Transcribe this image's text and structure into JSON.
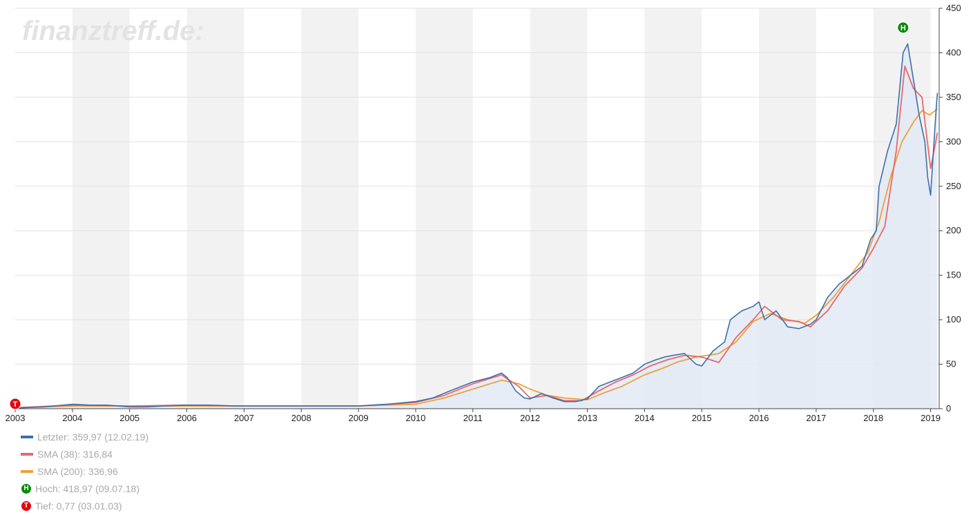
{
  "chart_data": {
    "type": "line",
    "watermark": "finanztreff.de:",
    "xlim": [
      2003.0,
      2019.15
    ],
    "ylim": [
      0,
      450
    ],
    "x_ticks": [
      "2003",
      "2004",
      "2005",
      "2006",
      "2007",
      "2008",
      "2009",
      "2010",
      "2011",
      "2012",
      "2013",
      "2014",
      "2015",
      "2016",
      "2017",
      "2018",
      "2019"
    ],
    "y_ticks": [
      "0",
      "50",
      "100",
      "150",
      "200",
      "250",
      "300",
      "350",
      "400",
      "450"
    ],
    "grid": "horizontal, alternating yearly column shading",
    "legend_position": "bottom-left",
    "colors": {
      "price": "#3d6eab",
      "sma38": "#e8676a",
      "sma200": "#f0a035",
      "area": "#e2eaf4",
      "high_marker": "#0a8a0a",
      "low_marker": "#e8000c"
    },
    "series": [
      {
        "name": "Letzter",
        "x": [
          2003.0,
          2003.5,
          2004.0,
          2004.3,
          2004.6,
          2005.0,
          2005.3,
          2005.6,
          2006.0,
          2006.4,
          2006.8,
          2007.2,
          2007.6,
          2008.0,
          2008.5,
          2009.0,
          2009.5,
          2010.0,
          2010.3,
          2010.6,
          2011.0,
          2011.3,
          2011.5,
          2011.6,
          2011.75,
          2011.9,
          2012.0,
          2012.2,
          2012.4,
          2012.6,
          2012.8,
          2013.0,
          2013.2,
          2013.4,
          2013.6,
          2013.8,
          2014.0,
          2014.2,
          2014.35,
          2014.5,
          2014.7,
          2014.9,
          2015.0,
          2015.2,
          2015.4,
          2015.5,
          2015.7,
          2015.9,
          2016.0,
          2016.1,
          2016.3,
          2016.5,
          2016.7,
          2016.9,
          2017.0,
          2017.2,
          2017.4,
          2017.6,
          2017.8,
          2017.95,
          2018.05,
          2018.1,
          2018.25,
          2018.4,
          2018.52,
          2018.6,
          2018.7,
          2018.8,
          2018.9,
          2018.95,
          2019.0,
          2019.05,
          2019.1,
          2019.12
        ],
        "values": [
          0.77,
          2,
          5,
          4,
          4,
          2,
          2,
          3,
          4,
          4,
          3,
          3,
          3,
          3,
          3,
          3,
          5,
          8,
          12,
          20,
          30,
          35,
          40,
          35,
          20,
          12,
          11,
          17,
          12,
          8,
          8,
          11,
          25,
          30,
          35,
          40,
          50,
          55,
          58,
          60,
          62,
          50,
          48,
          65,
          75,
          100,
          110,
          115,
          120,
          100,
          110,
          92,
          90,
          95,
          100,
          125,
          140,
          150,
          160,
          190,
          200,
          250,
          290,
          320,
          400,
          410,
          370,
          330,
          300,
          260,
          240,
          290,
          340,
          355
        ]
      },
      {
        "name": "SMA (38)",
        "x": [
          2003.0,
          2004.0,
          2005.0,
          2006.0,
          2007.0,
          2008.0,
          2009.0,
          2009.5,
          2010.0,
          2010.5,
          2011.0,
          2011.5,
          2011.8,
          2012.0,
          2012.3,
          2012.6,
          2012.9,
          2013.2,
          2013.5,
          2013.8,
          2014.1,
          2014.4,
          2014.7,
          2015.0,
          2015.3,
          2015.6,
          2015.9,
          2016.1,
          2016.4,
          2016.7,
          2016.9,
          2017.2,
          2017.5,
          2017.8,
          2018.0,
          2018.2,
          2018.4,
          2018.55,
          2018.7,
          2018.85,
          2019.0,
          2019.12
        ],
        "values": [
          1,
          4,
          3,
          4,
          3,
          3,
          3,
          5,
          7,
          15,
          28,
          38,
          25,
          12,
          15,
          9,
          9,
          20,
          30,
          38,
          48,
          55,
          60,
          58,
          52,
          80,
          100,
          115,
          100,
          98,
          92,
          110,
          138,
          158,
          180,
          205,
          290,
          385,
          360,
          350,
          270,
          310
        ]
      },
      {
        "name": "SMA (200)",
        "x": [
          2003.0,
          2004.0,
          2005.0,
          2006.0,
          2007.0,
          2008.0,
          2009.0,
          2009.5,
          2010.0,
          2010.5,
          2011.0,
          2011.5,
          2011.8,
          2012.0,
          2012.3,
          2012.6,
          2013.0,
          2013.3,
          2013.6,
          2014.0,
          2014.3,
          2014.6,
          2014.9,
          2015.1,
          2015.3,
          2015.6,
          2015.9,
          2016.2,
          2016.5,
          2016.8,
          2017.0,
          2017.3,
          2017.6,
          2017.9,
          2018.1,
          2018.3,
          2018.5,
          2018.7,
          2018.85,
          2018.98,
          2019.12
        ],
        "values": [
          1,
          3,
          3,
          3,
          3,
          3,
          3,
          4,
          5,
          12,
          22,
          32,
          28,
          22,
          15,
          12,
          10,
          18,
          25,
          38,
          45,
          53,
          58,
          60,
          62,
          75,
          98,
          107,
          100,
          96,
          105,
          125,
          150,
          175,
          210,
          260,
          300,
          322,
          335,
          330,
          337
        ]
      }
    ],
    "legend": [
      {
        "kind": "line",
        "color": "#3d6eab",
        "text": "Letzter: 359,97 (12.02.19)"
      },
      {
        "kind": "line",
        "color": "#e8676a",
        "text": "SMA (38): 316,84"
      },
      {
        "kind": "line",
        "color": "#f0a035",
        "text": "SMA (200): 336,96"
      },
      {
        "kind": "marker",
        "color": "#0a8a0a",
        "letter": "H",
        "text": "Hoch: 418,97 (09.07.18)"
      },
      {
        "kind": "marker",
        "color": "#e8000c",
        "letter": "T",
        "text": "Tief: 0,77 (03.01.03)"
      }
    ],
    "annotations": [
      {
        "letter": "H",
        "x": 2018.52,
        "y": 418.97,
        "color": "#0a8a0a"
      },
      {
        "letter": "T",
        "x": 2003.0,
        "y": 0.77,
        "color": "#e8000c"
      }
    ]
  }
}
